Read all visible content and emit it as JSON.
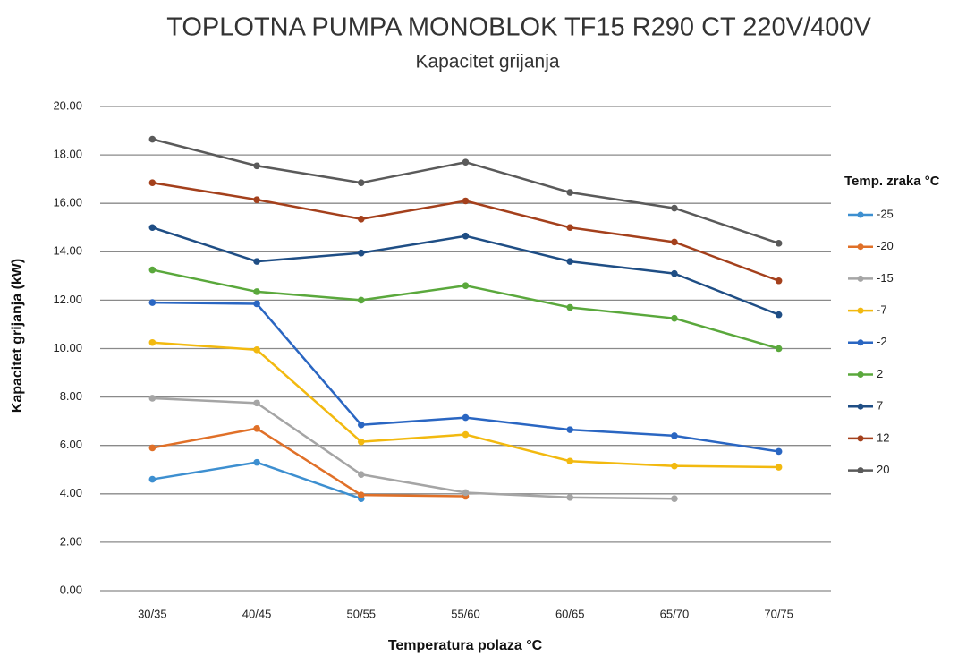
{
  "chart_data": {
    "type": "line",
    "title": "TOPLOTNA PUMPA MONOBLOK TF15 R290 CT 220V/400V",
    "subtitle": "Kapacitet grijanja",
    "x_label": "Temperatura polaza °C",
    "y_label": "Kapacitet grijanja (kW)",
    "legend_title": "Temp. zraka °C",
    "legend": "right",
    "grid": true,
    "categories": [
      "30/35",
      "40/45",
      "50/55",
      "55/60",
      "60/65",
      "65/70",
      "70/75"
    ],
    "ylim": [
      0,
      20
    ],
    "yticks": [
      {
        "value": 0,
        "label": "0.00"
      },
      {
        "value": 2,
        "label": "2.00"
      },
      {
        "value": 4,
        "label": "4.00"
      },
      {
        "value": 6,
        "label": "6.00"
      },
      {
        "value": 8,
        "label": "8.00"
      },
      {
        "value": 10,
        "label": "10.00"
      },
      {
        "value": 12,
        "label": "12.00"
      },
      {
        "value": 14,
        "label": "14.00"
      },
      {
        "value": 16,
        "label": "16.00"
      },
      {
        "value": 18,
        "label": "18.00"
      },
      {
        "value": 20,
        "label": "20.00"
      }
    ],
    "series": [
      {
        "name": "-25",
        "color": "#3d8fd0",
        "values": [
          4.6,
          5.3,
          3.8,
          null,
          null,
          null,
          null
        ]
      },
      {
        "name": "-20",
        "color": "#e07028",
        "values": [
          5.9,
          6.7,
          3.95,
          3.9,
          null,
          null,
          null
        ]
      },
      {
        "name": "-15",
        "color": "#a5a5a5",
        "values": [
          7.95,
          7.75,
          4.8,
          4.05,
          3.85,
          3.8,
          null
        ]
      },
      {
        "name": "-7",
        "color": "#f2b90f",
        "values": [
          10.25,
          9.95,
          6.15,
          6.45,
          5.35,
          5.15,
          5.1
        ]
      },
      {
        "name": "-2",
        "color": "#2a66c2",
        "values": [
          11.9,
          11.85,
          6.85,
          7.15,
          6.65,
          6.4,
          5.75
        ]
      },
      {
        "name": "2",
        "color": "#5aa83c",
        "values": [
          13.25,
          12.35,
          12.0,
          12.6,
          11.7,
          11.25,
          10.0
        ]
      },
      {
        "name": "7",
        "color": "#1f4e85",
        "values": [
          15.0,
          13.6,
          13.95,
          14.65,
          13.6,
          13.1,
          11.4
        ]
      },
      {
        "name": "12",
        "color": "#a4401c",
        "values": [
          16.85,
          16.15,
          15.35,
          16.1,
          15.0,
          14.4,
          12.8
        ]
      },
      {
        "name": "20",
        "color": "#5a5a5a",
        "values": [
          18.65,
          17.55,
          16.85,
          17.7,
          16.45,
          15.8,
          14.35
        ]
      }
    ]
  }
}
